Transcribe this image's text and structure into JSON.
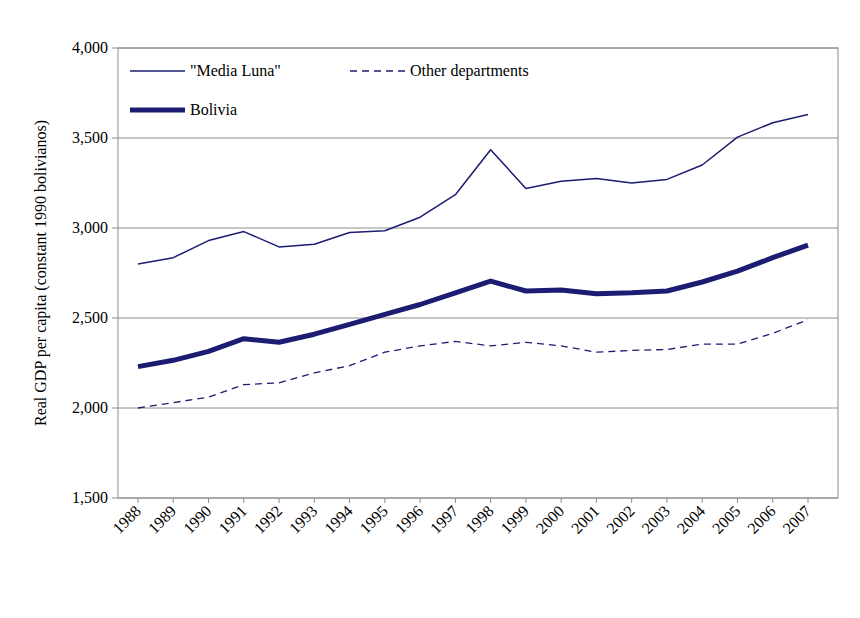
{
  "chart_data": {
    "type": "line",
    "y_label": "Real GDP per capita (constant 1990 bolivianos)",
    "categories": [
      "1988",
      "1989",
      "1990",
      "1991",
      "1992",
      "1993",
      "1994",
      "1995",
      "1996",
      "1997",
      "1998",
      "1999",
      "2000",
      "2001",
      "2002",
      "2003",
      "2004",
      "2005",
      "2006",
      "2007"
    ],
    "series": [
      {
        "name": "\"Media Luna\"",
        "color": "#1c1c72",
        "line_style": "solid",
        "values": [
          2800,
          2835,
          2930,
          2980,
          2895,
          2910,
          2975,
          2985,
          3060,
          3185,
          3435,
          3220,
          3260,
          3275,
          3250,
          3270,
          3350,
          3505,
          3585,
          3630
        ]
      },
      {
        "name": "Other departments",
        "color": "#1c1c72",
        "line_style": "dashed",
        "values": [
          2000,
          2030,
          2060,
          2130,
          2140,
          2195,
          2235,
          2310,
          2345,
          2370,
          2345,
          2365,
          2345,
          2310,
          2320,
          2325,
          2355,
          2355,
          2415,
          2490
        ]
      },
      {
        "name": "Bolivia",
        "color": "#1c1c72",
        "line_style": "thick",
        "values": [
          2230,
          2265,
          2315,
          2385,
          2365,
          2410,
          2465,
          2520,
          2575,
          2640,
          2705,
          2650,
          2655,
          2635,
          2640,
          2650,
          2700,
          2760,
          2835,
          2905
        ]
      }
    ],
    "ylim": [
      1500,
      4000
    ],
    "yticks": [
      {
        "value": 1500,
        "label": "1,500"
      },
      {
        "value": 2000,
        "label": "2,000"
      },
      {
        "value": 2500,
        "label": "2,500"
      },
      {
        "value": 3000,
        "label": "3,000"
      },
      {
        "value": 3500,
        "label": "3,500"
      },
      {
        "value": 4000,
        "label": "4,000"
      }
    ],
    "grid": true,
    "legend": "upper left"
  }
}
